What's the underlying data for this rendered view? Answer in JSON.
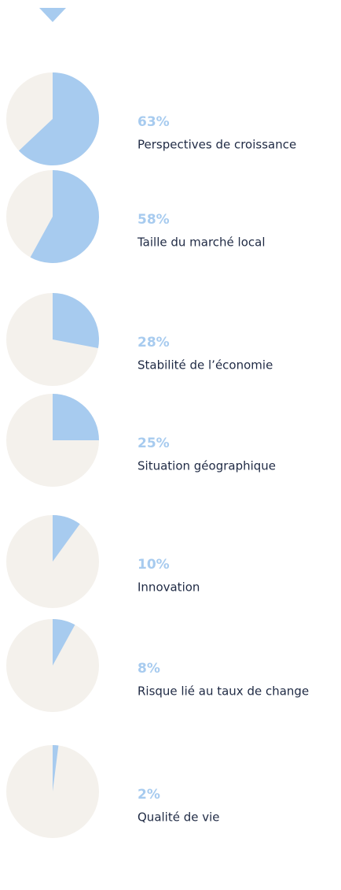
{
  "chart_data": [
    {
      "type": "pie",
      "categories": [
        "Perspectives de croissance"
      ],
      "values": [
        63
      ],
      "value_labels": [
        "63%"
      ],
      "color": "#a7cbef",
      "rest_color": "#f4f1ec"
    },
    {
      "type": "pie",
      "categories": [
        "Taille du marché local"
      ],
      "values": [
        58
      ],
      "value_labels": [
        "58%"
      ],
      "color": "#a7cbef",
      "rest_color": "#f4f1ec"
    },
    {
      "type": "pie",
      "categories": [
        "Stabilité de l’économie"
      ],
      "values": [
        28
      ],
      "value_labels": [
        "28%"
      ],
      "color": "#a7cbef",
      "rest_color": "#f4f1ec"
    },
    {
      "type": "pie",
      "categories": [
        "Situation géographique"
      ],
      "values": [
        25
      ],
      "value_labels": [
        "25%"
      ],
      "color": "#a7cbef",
      "rest_color": "#f4f1ec"
    },
    {
      "type": "pie",
      "categories": [
        "Innovation"
      ],
      "values": [
        10
      ],
      "value_labels": [
        "10%"
      ],
      "color": "#a7cbef",
      "rest_color": "#f4f1ec"
    },
    {
      "type": "pie",
      "categories": [
        "Risque lié au taux de change"
      ],
      "values": [
        8
      ],
      "value_labels": [
        "8%"
      ],
      "color": "#a7cbef",
      "rest_color": "#f4f1ec"
    },
    {
      "type": "pie",
      "categories": [
        "Qualité de vie"
      ],
      "values": [
        2
      ],
      "value_labels": [
        "2%"
      ],
      "color": "#a7cbef",
      "rest_color": "#f4f1ec"
    }
  ]
}
